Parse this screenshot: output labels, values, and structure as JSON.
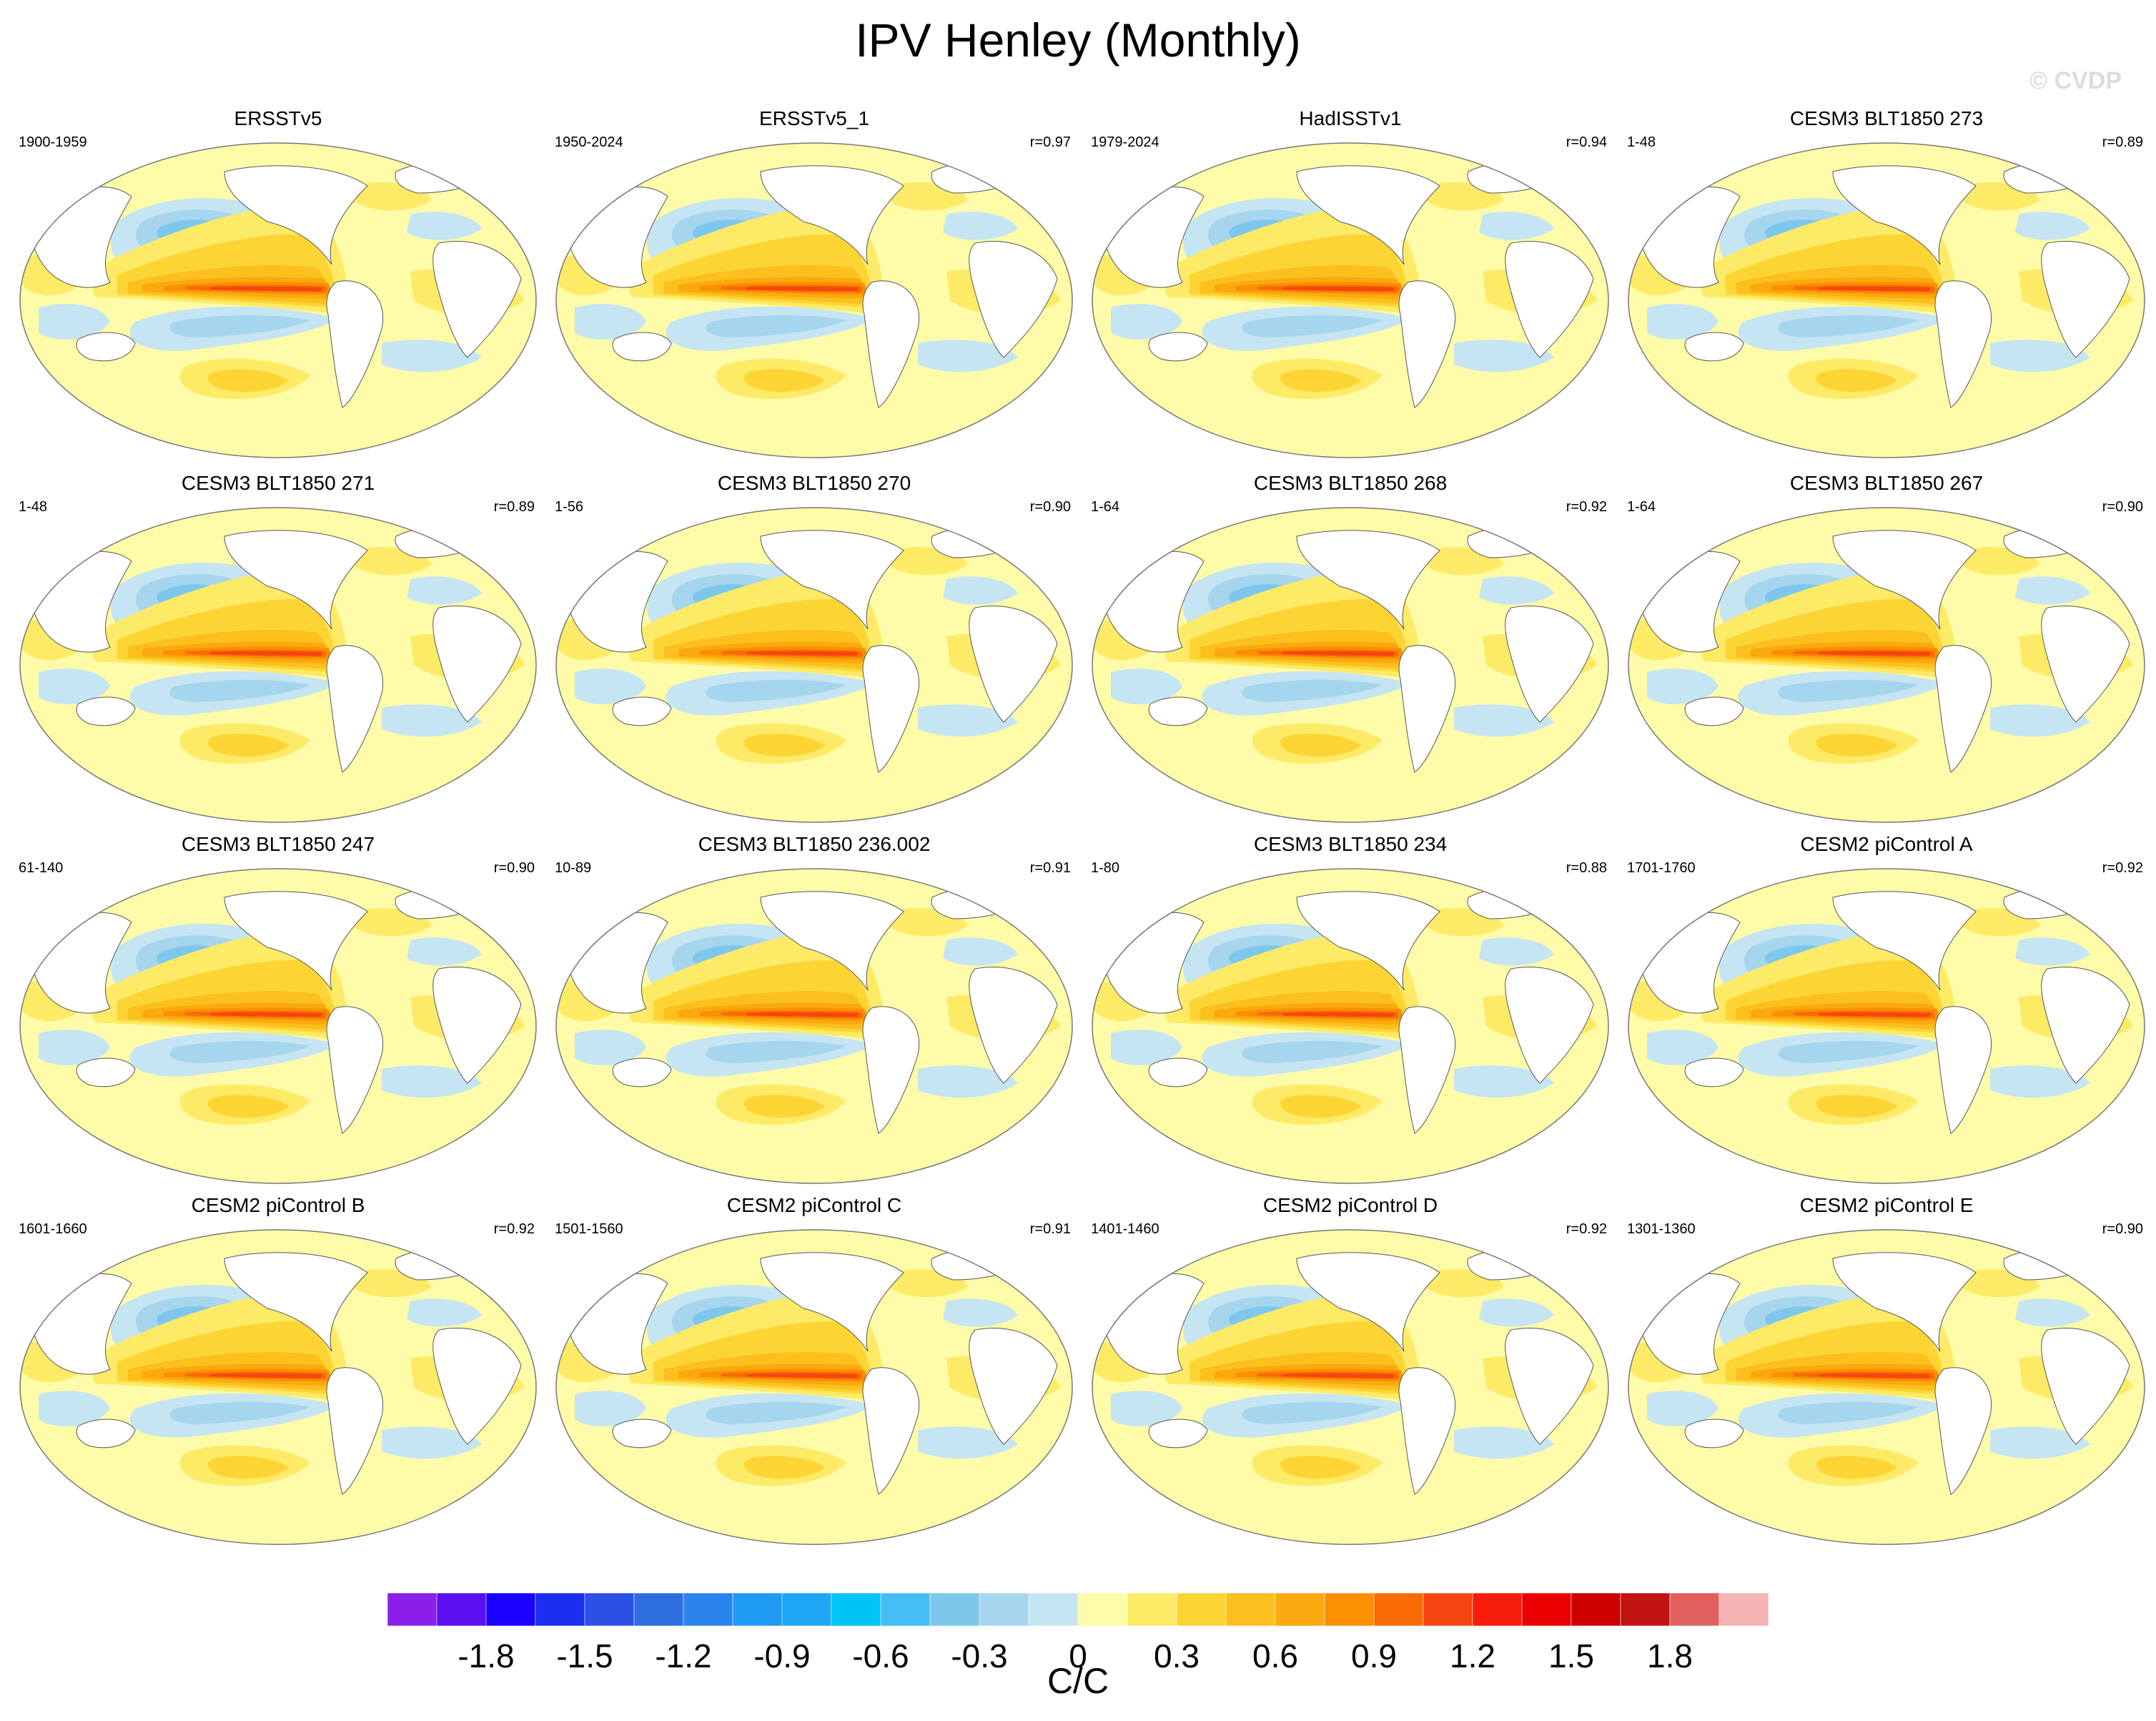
{
  "title": "IPV Henley (Monthly)",
  "watermark": "© CVDP",
  "units": "C/C",
  "chart_data": {
    "type": "heatmap",
    "title": "IPV Henley (Monthly)",
    "colorbar": {
      "units": "C/C",
      "tick_labels": [
        "-1.8",
        "-1.5",
        "-1.2",
        "-0.9",
        "-0.6",
        "-0.3",
        "0",
        "0.3",
        "0.6",
        "0.9",
        "1.2",
        "1.5",
        "1.8"
      ],
      "tick_values": [
        -1.8,
        -1.5,
        -1.2,
        -0.9,
        -0.6,
        -0.3,
        0,
        0.3,
        0.6,
        0.9,
        1.2,
        1.5,
        1.8
      ],
      "levels": [
        -1.95,
        -1.8,
        -1.65,
        -1.5,
        -1.35,
        -1.2,
        -1.05,
        -0.9,
        -0.75,
        -0.6,
        -0.45,
        -0.3,
        -0.15,
        0,
        0.15,
        0.3,
        0.45,
        0.6,
        0.75,
        0.9,
        1.05,
        1.2,
        1.35,
        1.5,
        1.65,
        1.8,
        1.95
      ],
      "colors": [
        "#8a20e8",
        "#5a10f0",
        "#1a00ff",
        "#1a2ef0",
        "#2a50e6",
        "#2d6ee0",
        "#2b84ee",
        "#1f9af2",
        "#1ea6f5",
        "#00c4f6",
        "#45bdf3",
        "#7ec7ec",
        "#a6d5ee",
        "#c6e5f2",
        "#fefca8",
        "#fdea66",
        "#fcd535",
        "#fbbf1e",
        "#faa90e",
        "#fa8f00",
        "#f86b05",
        "#f64510",
        "#f81c0a",
        "#ea0000",
        "#cc0000",
        "#c21414",
        "#e06060",
        "#f6b4b4"
      ]
    },
    "panels": [
      {
        "name": "ERSSTv5",
        "period": "1900-1959",
        "r": ""
      },
      {
        "name": "ERSSTv5_1",
        "period": "1950-2024",
        "r": "r=0.97"
      },
      {
        "name": "HadISSTv1",
        "period": "1979-2024",
        "r": "r=0.94"
      },
      {
        "name": "CESM3 BLT1850 273",
        "period": "1-48",
        "r": "r=0.89"
      },
      {
        "name": "CESM3 BLT1850 271",
        "period": "1-48",
        "r": "r=0.89"
      },
      {
        "name": "CESM3 BLT1850 270",
        "period": "1-56",
        "r": "r=0.90"
      },
      {
        "name": "CESM3 BLT1850 268",
        "period": "1-64",
        "r": "r=0.92"
      },
      {
        "name": "CESM3 BLT1850 267",
        "period": "1-64",
        "r": "r=0.90"
      },
      {
        "name": "CESM3 BLT1850 247",
        "period": "61-140",
        "r": "r=0.90"
      },
      {
        "name": "CESM3 BLT1850 236.002",
        "period": "10-89",
        "r": "r=0.91"
      },
      {
        "name": "CESM3 BLT1850 234",
        "period": "1-80",
        "r": "r=0.88"
      },
      {
        "name": "CESM2 piControl A",
        "period": "1701-1760",
        "r": "r=0.92"
      },
      {
        "name": "CESM2 piControl B",
        "period": "1601-1660",
        "r": "r=0.92"
      },
      {
        "name": "CESM2 piControl C",
        "period": "1501-1560",
        "r": "r=0.91"
      },
      {
        "name": "CESM2 piControl D",
        "period": "1401-1460",
        "r": "r=0.92"
      },
      {
        "name": "CESM2 piControl E",
        "period": "1301-1360",
        "r": "r=0.90"
      }
    ]
  }
}
